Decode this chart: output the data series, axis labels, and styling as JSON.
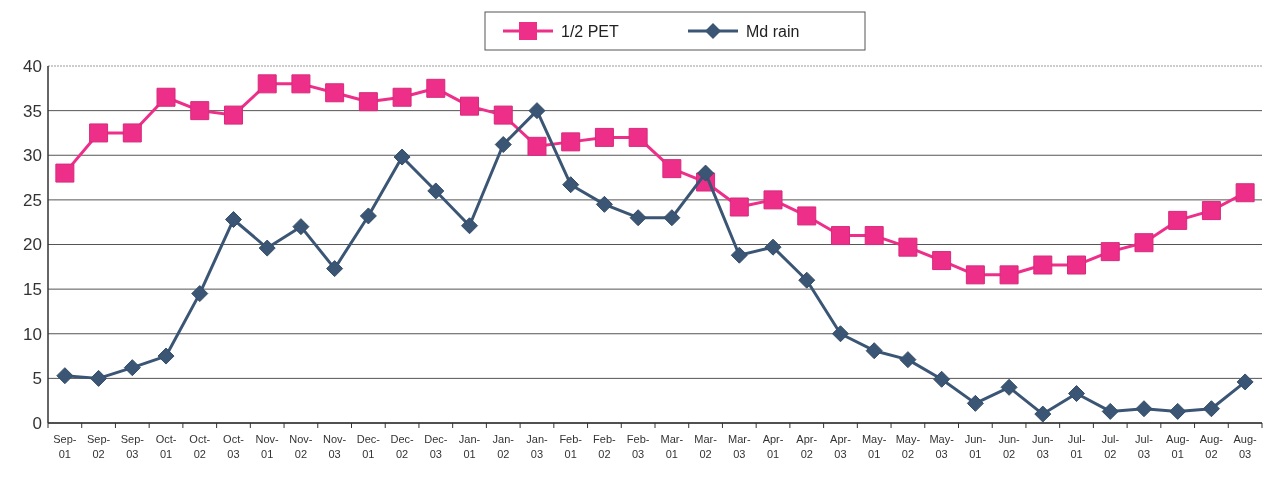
{
  "chart_data": {
    "type": "line",
    "categories": [
      "Sep-01",
      "Sep-02",
      "Sep-03",
      "Oct-01",
      "Oct-02",
      "Oct-03",
      "Nov-01",
      "Nov-02",
      "Nov-03",
      "Dec-01",
      "Dec-02",
      "Dec-03",
      "Jan-01",
      "Jan-02",
      "Jan-03",
      "Feb-01",
      "Feb-02",
      "Feb-03",
      "Mar-01",
      "Mar-02",
      "Mar-03",
      "Apr-01",
      "Apr-02",
      "Apr-03",
      "May-01",
      "May-02",
      "May-03",
      "Jun-01",
      "Jun-02",
      "Jun-03",
      "Jul-01",
      "Jul-02",
      "Jul-03",
      "Aug-01",
      "Aug-02",
      "Aug-03"
    ],
    "series": [
      {
        "name": "1/2 PET",
        "color": "#ee2f8a",
        "marker": "square",
        "values": [
          28,
          32.5,
          32.5,
          36.5,
          35,
          34.5,
          38,
          38,
          37,
          36,
          36.5,
          37.5,
          35.5,
          34.5,
          31,
          31.5,
          32,
          32,
          28.5,
          27,
          24.2,
          25,
          23.2,
          21,
          21,
          19.7,
          18.2,
          16.6,
          16.6,
          17.7,
          17.7,
          19.2,
          20.2,
          22.7,
          23.8,
          25.8
        ]
      },
      {
        "name": "Md rain",
        "color": "#3b5675",
        "marker": "diamond",
        "values": [
          5.3,
          5,
          6.2,
          7.5,
          14.5,
          22.8,
          19.6,
          22,
          17.3,
          23.2,
          29.8,
          26,
          22.1,
          31.2,
          35,
          26.7,
          24.5,
          23,
          23,
          28,
          18.8,
          19.7,
          16,
          10,
          8.1,
          7.1,
          4.9,
          2.2,
          4,
          1,
          3.3,
          1.3,
          1.6,
          1.3,
          1.6,
          4.6
        ]
      }
    ],
    "ylim": [
      0,
      40
    ],
    "yticks": [
      0,
      5,
      10,
      15,
      20,
      25,
      30,
      35,
      40
    ],
    "grid": "y",
    "legend": "top"
  }
}
